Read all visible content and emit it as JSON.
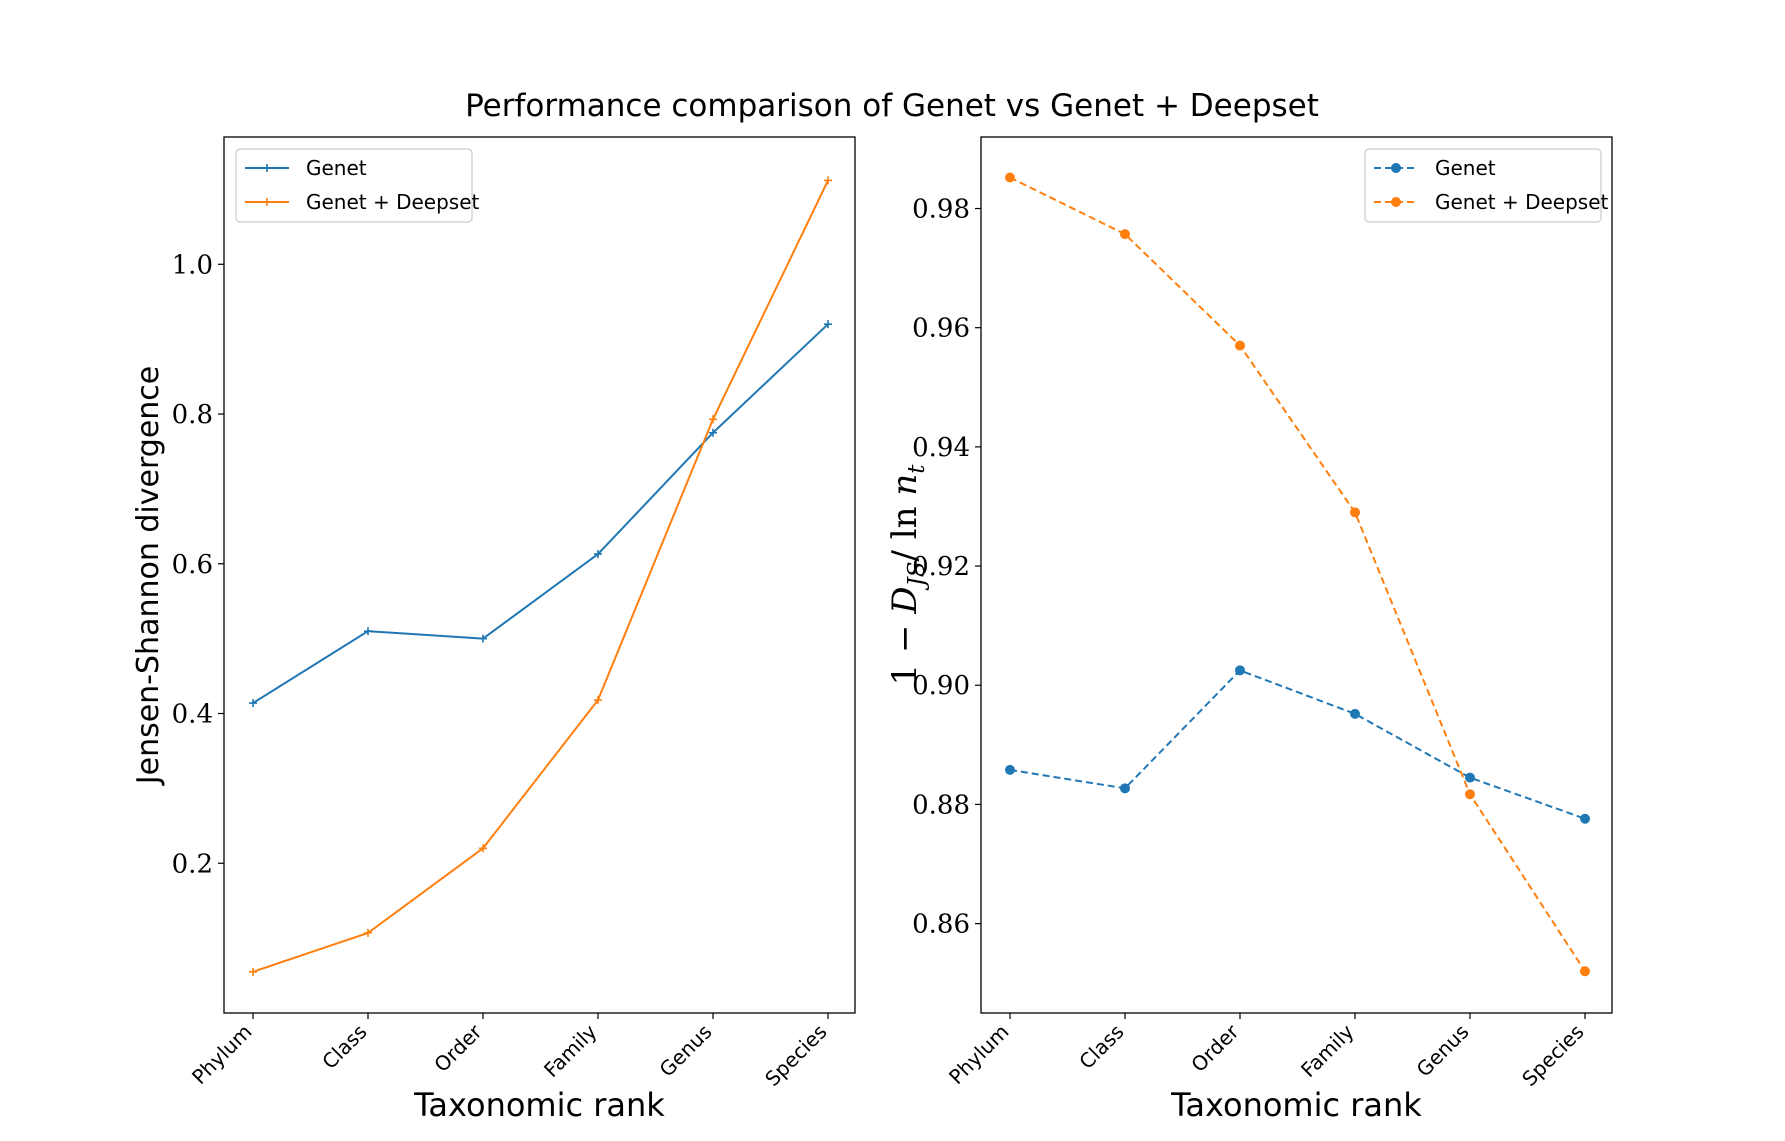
{
  "figure": {
    "title": "Performance comparison of Genet vs Genet + Deepset"
  },
  "colors": {
    "genet": "#1f77b4",
    "genet_deepset": "#ff7f0e",
    "axes": "#000000",
    "background": "#ffffff"
  },
  "chart_data": [
    {
      "type": "line",
      "marker": "plus",
      "line_style": "solid",
      "categories": [
        "Phylum",
        "Class",
        "Order",
        "Family",
        "Genus",
        "Species"
      ],
      "series": [
        {
          "name": "Genet",
          "color": "#1f77b4",
          "values": [
            0.414,
            0.51,
            0.5,
            0.613,
            0.775,
            0.92
          ]
        },
        {
          "name": "Genet + Deepset",
          "color": "#ff7f0e",
          "values": [
            0.055,
            0.107,
            0.22,
            0.418,
            0.793,
            1.112
          ]
        }
      ],
      "title": "",
      "xlabel": "Taxonomic rank",
      "ylabel": "Jensen-Shannon divergence",
      "ylim": [
        0.0,
        1.17
      ],
      "yticks": [
        0.2,
        0.4,
        0.6,
        0.8,
        1.0
      ],
      "ytick_labels": [
        "0.2",
        "0.4",
        "0.6",
        "0.8",
        "1.0"
      ],
      "grid": false,
      "legend": "top-left"
    },
    {
      "type": "line",
      "marker": "circle",
      "line_style": "dashed",
      "categories": [
        "Phylum",
        "Class",
        "Order",
        "Family",
        "Genus",
        "Species"
      ],
      "series": [
        {
          "name": "Genet",
          "color": "#1f77b4",
          "values": [
            0.8858,
            0.8827,
            0.9025,
            0.8952,
            0.8845,
            0.8776
          ]
        },
        {
          "name": "Genet + Deepset",
          "color": "#ff7f0e",
          "values": [
            0.9852,
            0.9757,
            0.957,
            0.929,
            0.8817,
            0.852
          ]
        }
      ],
      "title": "",
      "xlabel": "Taxonomic rank",
      "ylabel": "1 − D_JS / ln n_t",
      "ylabel_parts": [
        "1 − ",
        "D",
        "JS",
        "/ ln ",
        "n",
        "t"
      ],
      "ylim": [
        0.845,
        0.992
      ],
      "yticks": [
        0.86,
        0.88,
        0.9,
        0.92,
        0.94,
        0.96,
        0.98
      ],
      "ytick_labels": [
        "0.86",
        "0.88",
        "0.90",
        "0.92",
        "0.94",
        "0.96",
        "0.98"
      ],
      "grid": false,
      "legend": "top-right"
    }
  ]
}
